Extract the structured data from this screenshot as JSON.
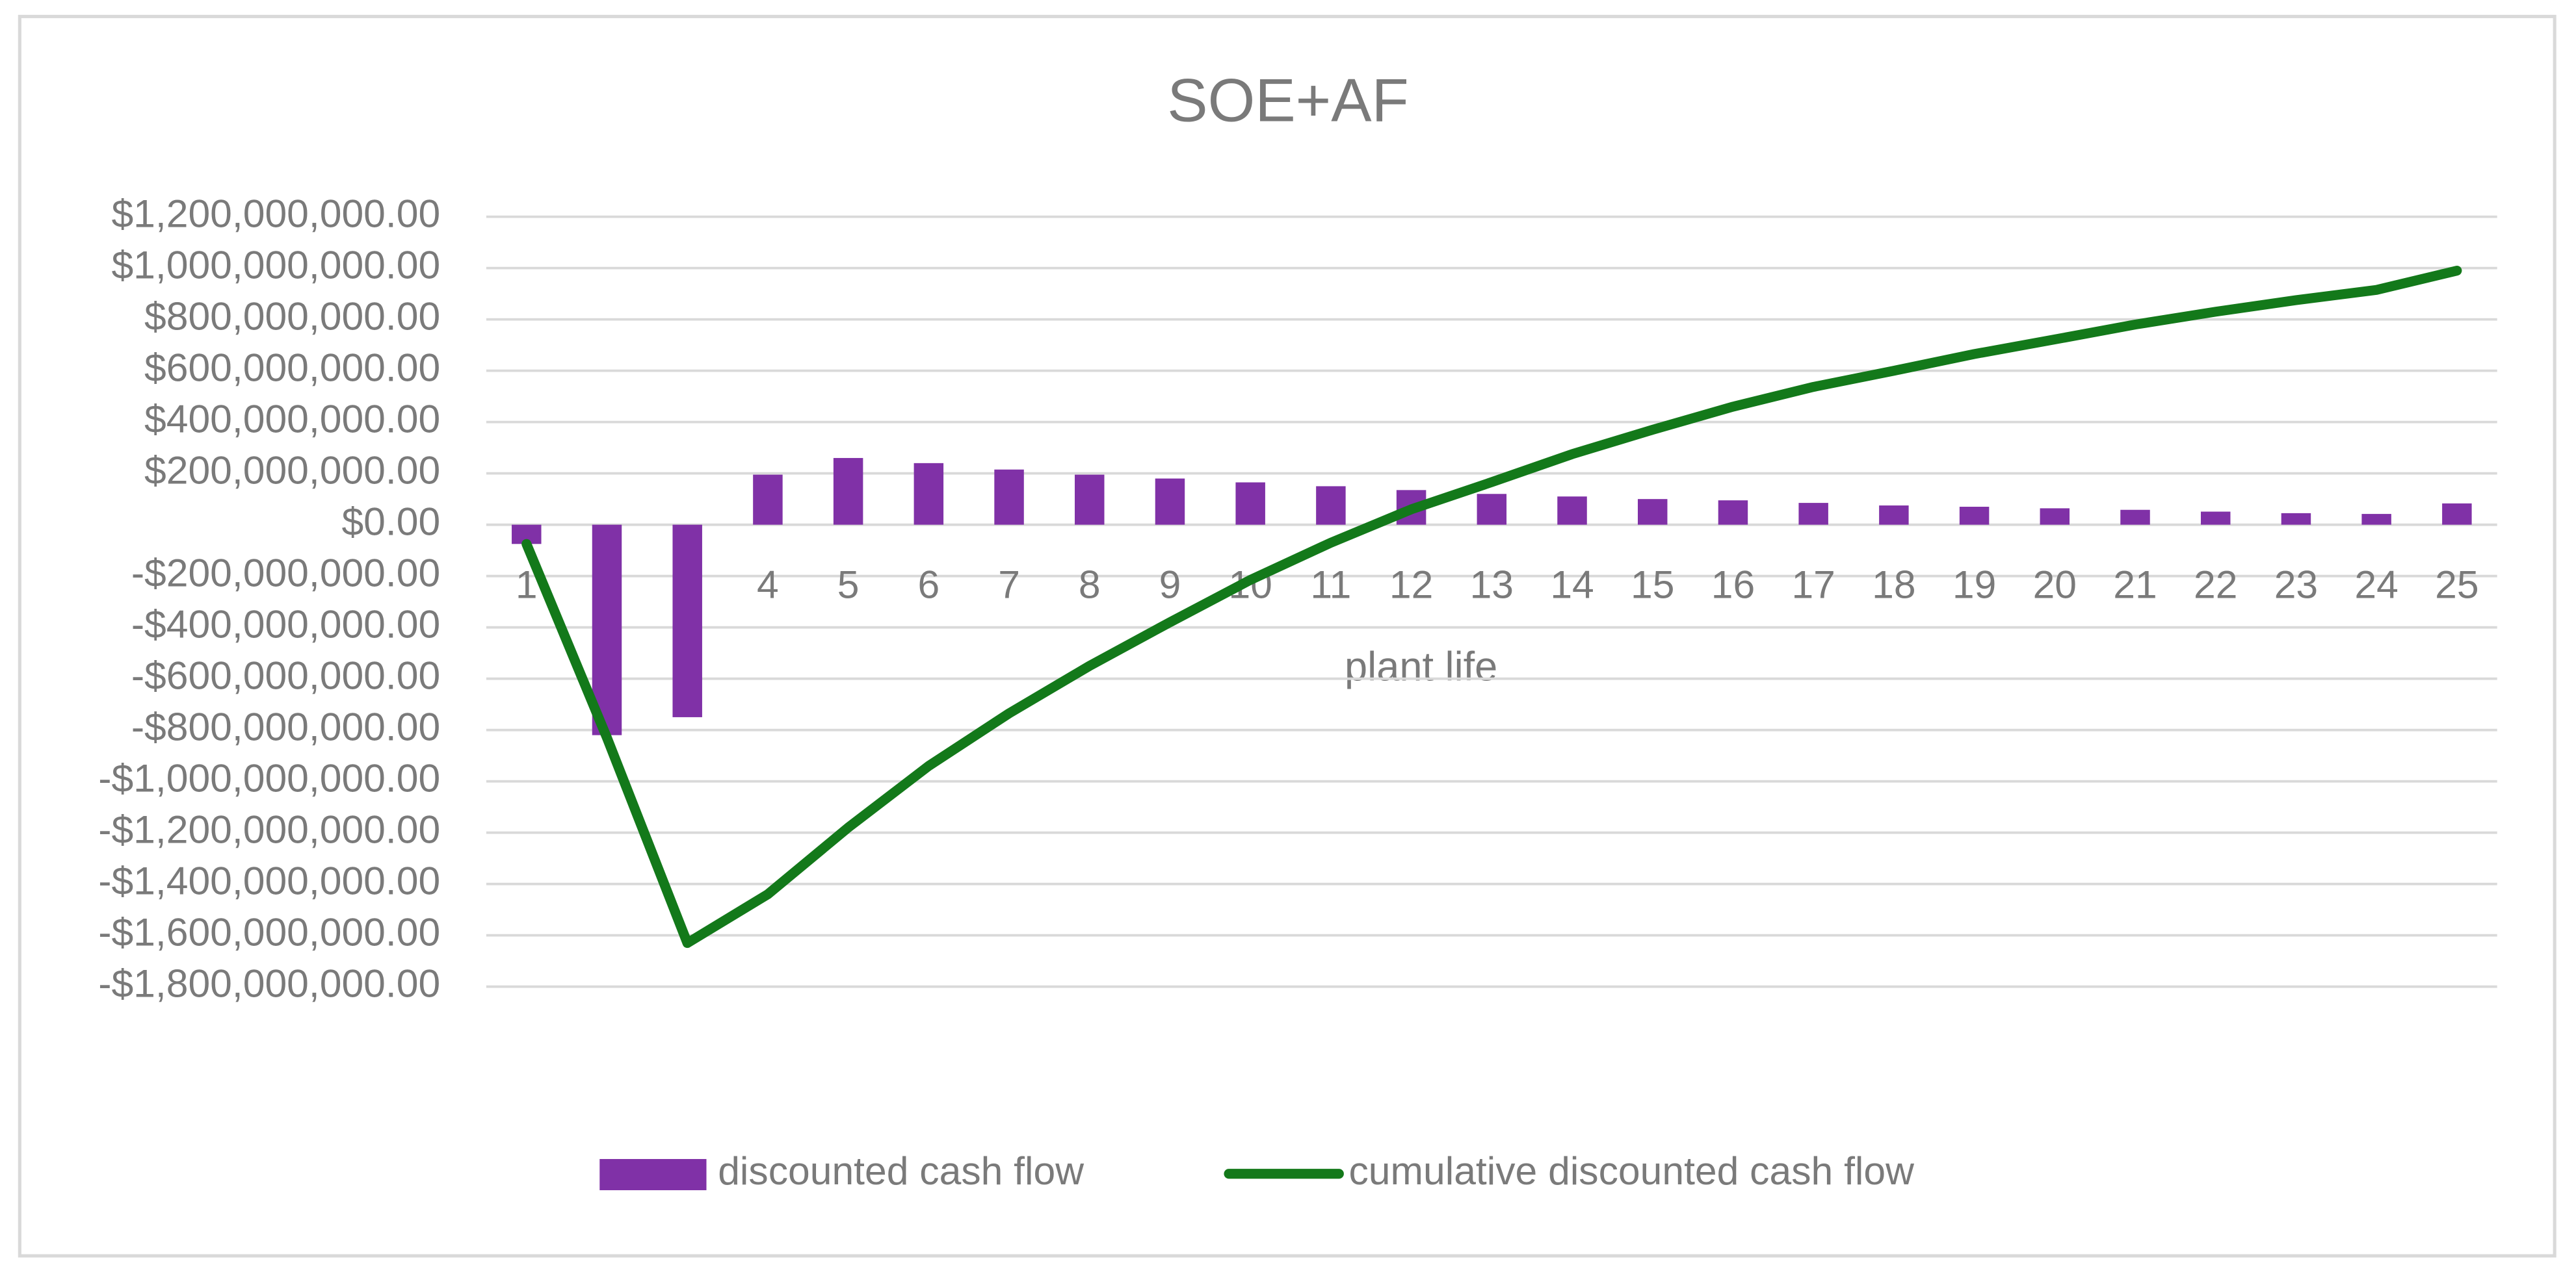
{
  "chart_data": {
    "type": "bar",
    "title": "SOE+AF",
    "x_label": "plant life",
    "categories": [
      "1",
      "2",
      "3",
      "4",
      "5",
      "6",
      "7",
      "8",
      "9",
      "10",
      "11",
      "12",
      "13",
      "14",
      "15",
      "16",
      "17",
      "18",
      "19",
      "20",
      "21",
      "22",
      "23",
      "24",
      "25"
    ],
    "series": [
      {
        "name": "discounted cash flow",
        "type": "bar",
        "color": "#8031a7",
        "values": [
          -75000000,
          -820000000,
          -750000000,
          195000000,
          260000000,
          240000000,
          215000000,
          195000000,
          180000000,
          165000000,
          150000000,
          135000000,
          120000000,
          110000000,
          100000000,
          95000000,
          85000000,
          75000000,
          70000000,
          64000000,
          58000000,
          51000000,
          45000000,
          42000000,
          83000000
        ]
      },
      {
        "name": "cumulative discounted cash flow",
        "type": "line",
        "color": "#13791a",
        "values": [
          -75000000,
          -830000000,
          -1630000000,
          -1440000000,
          -1180000000,
          -940000000,
          -735000000,
          -550000000,
          -380000000,
          -215000000,
          -70000000,
          60000000,
          166000000,
          275000000,
          370000000,
          460000000,
          537000000,
          600000000,
          665000000,
          722000000,
          780000000,
          830000000,
          875000000,
          915000000,
          990000000
        ]
      }
    ],
    "ylim": [
      -1800000000,
      1200000000
    ],
    "yticks": [
      {
        "value": -1800000000,
        "label": "-$1,800,000,000.00"
      },
      {
        "value": -1600000000,
        "label": "-$1,600,000,000.00"
      },
      {
        "value": -1400000000,
        "label": "-$1,400,000,000.00"
      },
      {
        "value": -1200000000,
        "label": "-$1,200,000,000.00"
      },
      {
        "value": -1000000000,
        "label": "-$1,000,000,000.00"
      },
      {
        "value": -800000000,
        "label": "-$800,000,000.00"
      },
      {
        "value": -600000000,
        "label": "-$600,000,000.00"
      },
      {
        "value": -400000000,
        "label": "-$400,000,000.00"
      },
      {
        "value": -200000000,
        "label": "-$200,000,000.00"
      },
      {
        "value": 0,
        "label": "$0.00"
      },
      {
        "value": 200000000,
        "label": "$200,000,000.00"
      },
      {
        "value": 400000000,
        "label": "$400,000,000.00"
      },
      {
        "value": 600000000,
        "label": "$600,000,000.00"
      },
      {
        "value": 800000000,
        "label": "$800,000,000.00"
      },
      {
        "value": 1000000000,
        "label": "$1,000,000,000.00"
      },
      {
        "value": 1200000000,
        "label": "$1,200,000,000.00"
      }
    ],
    "grid": true,
    "legend": "bottom"
  }
}
